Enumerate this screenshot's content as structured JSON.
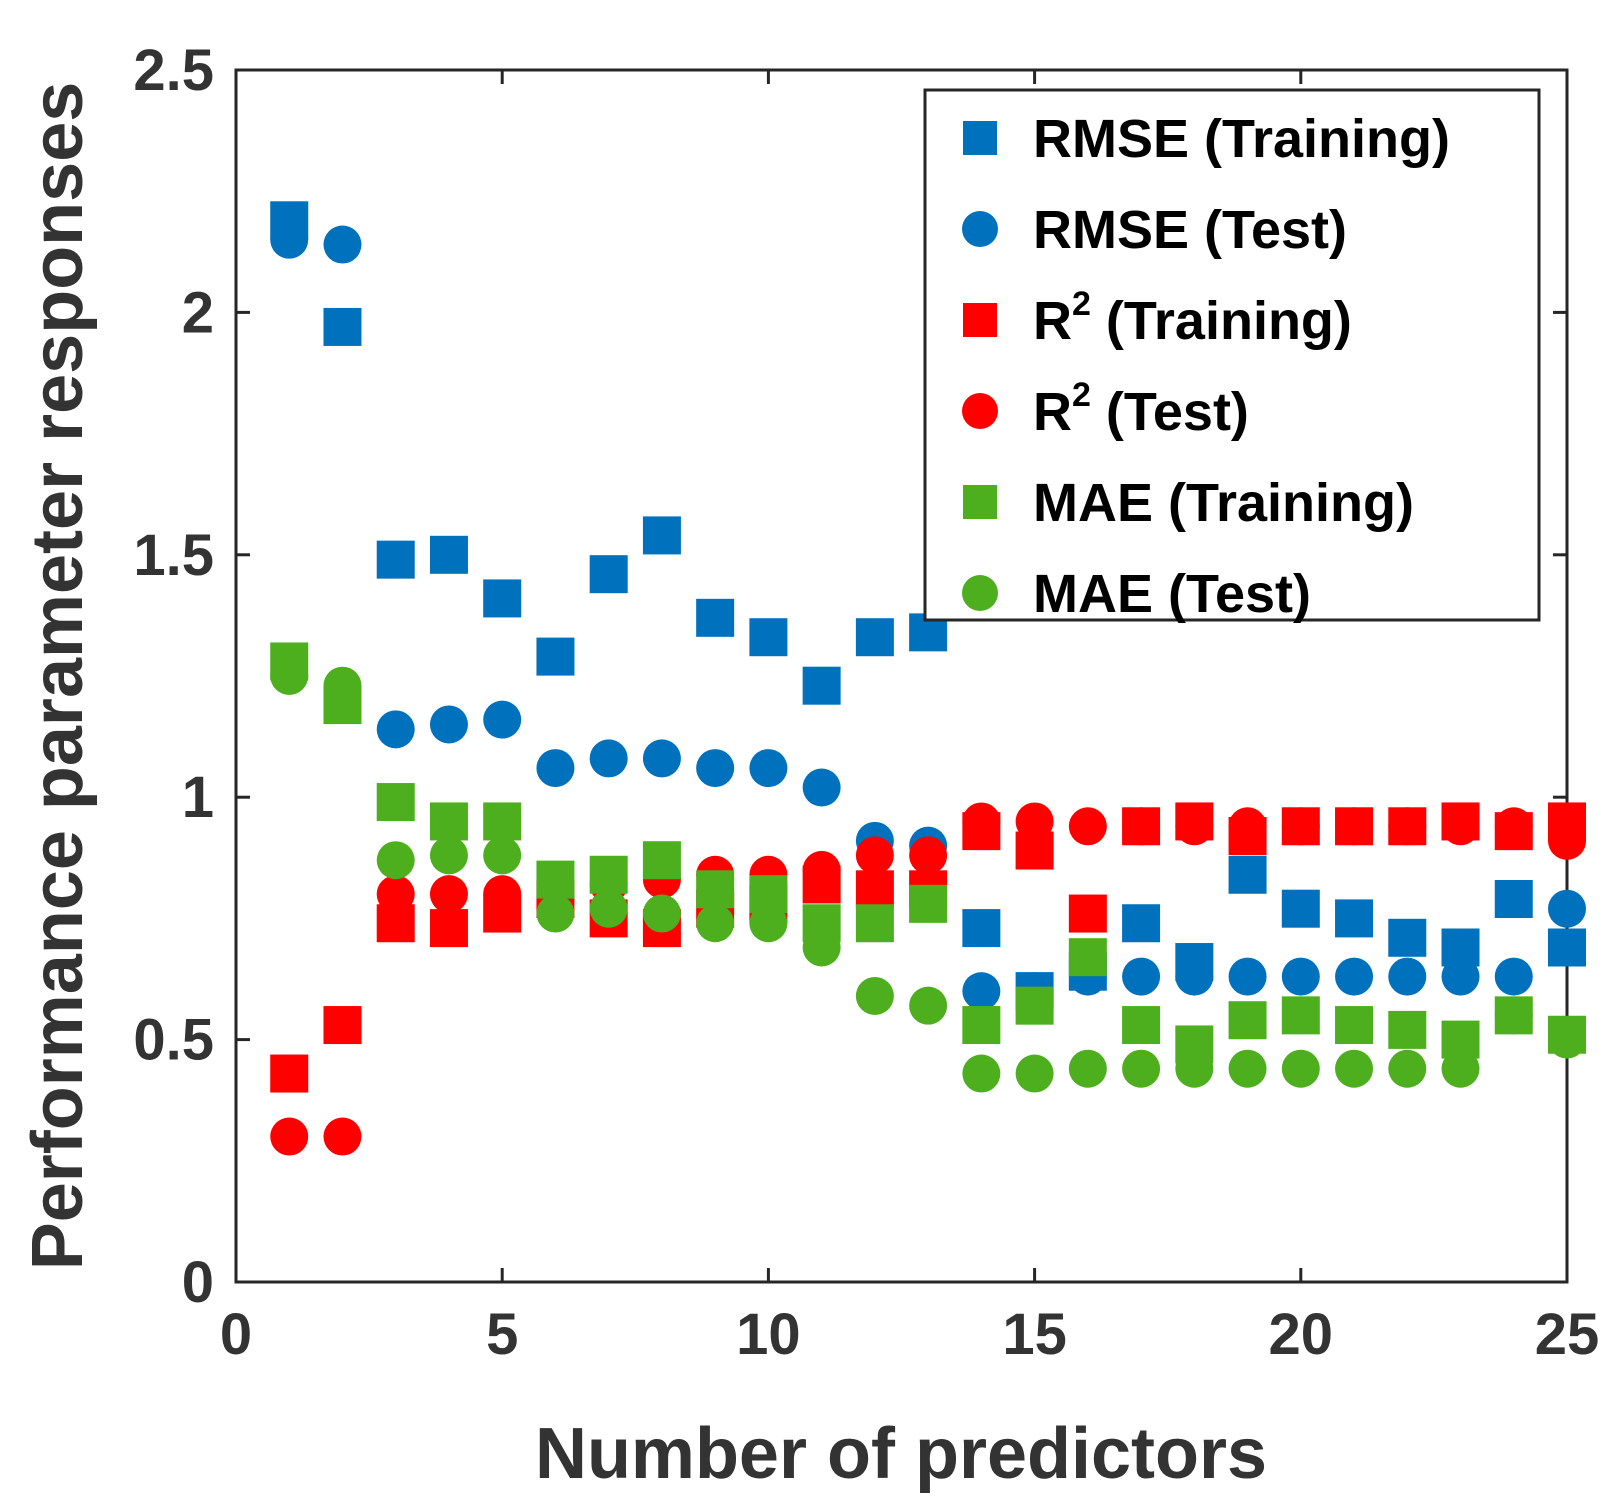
{
  "chart_data": {
    "type": "scatter",
    "title": "",
    "xlabel": "Number of predictors",
    "ylabel": "Performance parameter responses",
    "xlim": [
      0,
      25
    ],
    "ylim": [
      0,
      2.5
    ],
    "xticks": [
      0,
      5,
      10,
      15,
      20,
      25
    ],
    "yticks": [
      0,
      0.5,
      1,
      1.5,
      2,
      2.5
    ],
    "xtick_labels": [
      "0",
      "5",
      "10",
      "15",
      "20",
      "25"
    ],
    "ytick_labels": [
      "0",
      "0.5",
      "1",
      "1.5",
      "2",
      "2.5"
    ],
    "legend_position": "top-right",
    "grid": false,
    "x": [
      1,
      2,
      3,
      4,
      5,
      6,
      7,
      8,
      9,
      10,
      11,
      12,
      13,
      14,
      15,
      16,
      17,
      18,
      19,
      20,
      21,
      22,
      23,
      24,
      25
    ],
    "series": [
      {
        "name": "RMSE (Training)",
        "label_main": "RMSE",
        "label_sup": "",
        "label_rest": " (Training)",
        "color": "#0072BD",
        "marker": "square",
        "values": [
          2.19,
          1.97,
          1.49,
          1.5,
          1.41,
          1.29,
          1.46,
          1.54,
          1.37,
          1.33,
          1.23,
          1.33,
          1.34,
          0.73,
          0.6,
          0.64,
          0.74,
          0.66,
          0.84,
          0.77,
          0.75,
          0.71,
          0.69,
          0.79,
          0.69
        ]
      },
      {
        "name": "RMSE (Test)",
        "label_main": "RMSE",
        "label_sup": "",
        "label_rest": " (Test)",
        "color": "#0072BD",
        "marker": "circle",
        "values": [
          2.15,
          2.14,
          1.14,
          1.15,
          1.16,
          1.06,
          1.08,
          1.08,
          1.06,
          1.06,
          1.02,
          0.91,
          0.9,
          0.6,
          0.6,
          0.63,
          0.63,
          0.63,
          0.63,
          0.63,
          0.63,
          0.63,
          0.63,
          0.63,
          0.77
        ]
      },
      {
        "name": "R2 (Training)",
        "label_main": "R",
        "label_sup": "2",
        "label_rest": " (Training)",
        "color": "#FF0000",
        "marker": "square",
        "values": [
          0.43,
          0.53,
          0.74,
          0.73,
          0.76,
          0.79,
          0.75,
          0.73,
          0.77,
          0.78,
          0.82,
          0.81,
          0.81,
          0.93,
          0.89,
          0.76,
          0.94,
          0.95,
          0.92,
          0.94,
          0.94,
          0.94,
          0.95,
          0.93,
          0.95
        ]
      },
      {
        "name": "R2 (Test)",
        "label_main": "R",
        "label_sup": "2",
        "label_rest": " (Test)",
        "color": "#FF0000",
        "marker": "circle",
        "values": [
          0.3,
          0.3,
          0.8,
          0.8,
          0.8,
          0.82,
          0.82,
          0.83,
          0.84,
          0.84,
          0.85,
          0.88,
          0.88,
          0.95,
          0.95,
          0.94,
          0.94,
          0.94,
          0.94,
          0.94,
          0.94,
          0.94,
          0.94,
          0.94,
          0.91
        ]
      },
      {
        "name": "MAE (Training)",
        "label_main": "MAE",
        "label_sup": "",
        "label_rest": " (Training)",
        "color": "#4DAF1E",
        "marker": "square",
        "values": [
          1.28,
          1.19,
          0.99,
          0.95,
          0.95,
          0.83,
          0.84,
          0.87,
          0.81,
          0.8,
          0.74,
          0.74,
          0.78,
          0.53,
          0.57,
          0.67,
          0.53,
          0.49,
          0.54,
          0.55,
          0.53,
          0.52,
          0.5,
          0.55,
          0.51
        ]
      },
      {
        "name": "MAE (Test)",
        "label_main": "MAE",
        "label_sup": "",
        "label_rest": " (Test)",
        "color": "#4DAF1E",
        "marker": "circle",
        "values": [
          1.25,
          1.23,
          0.87,
          0.88,
          0.88,
          0.76,
          0.77,
          0.76,
          0.74,
          0.74,
          0.69,
          0.59,
          0.57,
          0.43,
          0.43,
          0.44,
          0.44,
          0.44,
          0.44,
          0.44,
          0.44,
          0.44,
          0.44,
          0.55,
          0.5
        ]
      }
    ]
  }
}
